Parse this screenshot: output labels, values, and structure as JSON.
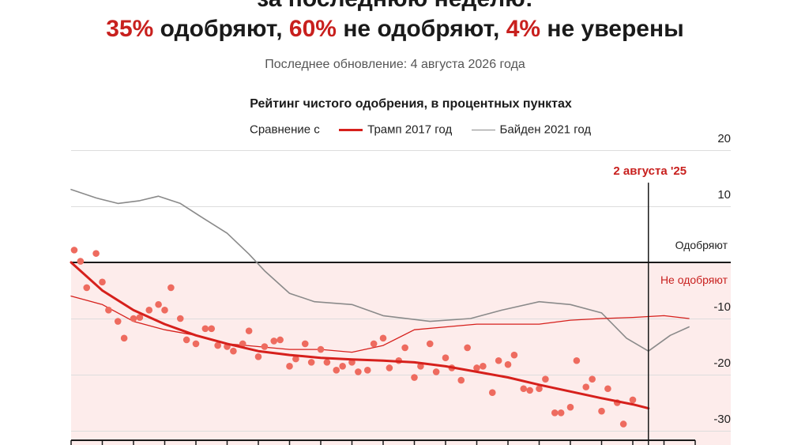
{
  "header": {
    "line1": "за последнюю неделю:",
    "approve_pct": "35%",
    "approve_text": "одобряют,",
    "disapprove_pct": "60%",
    "disapprove_text": "не одобряют,",
    "unsure_pct": "4%",
    "unsure_text": "не уверены",
    "updated": "Последнее обновление: 4 августа 2026 года"
  },
  "legend": {
    "compare_label": "Сравнение с",
    "trump_label": "Трамп 2017 год",
    "biden_label": "Байден 2021 год"
  },
  "colors": {
    "trump": "#d6201c",
    "dots": "#ee6b5f",
    "biden": "#8a8a8a",
    "disapprove_zone": "#fdeceb",
    "accent": "#c8201e"
  },
  "chart_data": {
    "type": "scatter",
    "title": "Рейтинг чистого одобрения, в процентных пунктах",
    "xlabel": "",
    "ylabel": "",
    "ylim": [
      -31,
      22
    ],
    "xlim": [
      0,
      200
    ],
    "y_ticks": [
      20,
      10,
      -10,
      -20,
      -30
    ],
    "grid": true,
    "annotations": {
      "date_marker_label": "2 августа '25",
      "date_marker_x": 185,
      "approve_label": "Одобряют",
      "disapprove_label": "Не одобряют"
    },
    "dots": [
      [
        1,
        2.2
      ],
      [
        3,
        0.2
      ],
      [
        5,
        -4.5
      ],
      [
        8,
        1.6
      ],
      [
        10,
        -3.5
      ],
      [
        12,
        -8.5
      ],
      [
        15,
        -10.5
      ],
      [
        17,
        -13.5
      ],
      [
        20,
        -10
      ],
      [
        22,
        -9.8
      ],
      [
        25,
        -8.5
      ],
      [
        28,
        -7.5
      ],
      [
        30,
        -8.5
      ],
      [
        32,
        -4.5
      ],
      [
        35,
        -10
      ],
      [
        37,
        -13.8
      ],
      [
        40,
        -14.5
      ],
      [
        43,
        -11.8
      ],
      [
        45,
        -11.8
      ],
      [
        47,
        -14.8
      ],
      [
        50,
        -15
      ],
      [
        52,
        -15.8
      ],
      [
        55,
        -14.5
      ],
      [
        57,
        -12.2
      ],
      [
        60,
        -16.8
      ],
      [
        62,
        -15
      ],
      [
        65,
        -14
      ],
      [
        67,
        -13.8
      ],
      [
        70,
        -18.5
      ],
      [
        72,
        -17.2
      ],
      [
        75,
        -14.5
      ],
      [
        77,
        -17.8
      ],
      [
        80,
        -15.5
      ],
      [
        82,
        -17.8
      ],
      [
        85,
        -19.2
      ],
      [
        87,
        -18.5
      ],
      [
        90,
        -17.8
      ],
      [
        92,
        -19.5
      ],
      [
        95,
        -19.2
      ],
      [
        97,
        -14.5
      ],
      [
        100,
        -13.5
      ],
      [
        102,
        -18.8
      ],
      [
        105,
        -17.5
      ],
      [
        107,
        -15.2
      ],
      [
        110,
        -20.5
      ],
      [
        112,
        -18.5
      ],
      [
        115,
        -14.5
      ],
      [
        117,
        -19.5
      ],
      [
        120,
        -17
      ],
      [
        122,
        -18.8
      ],
      [
        125,
        -21
      ],
      [
        127,
        -15.2
      ],
      [
        130,
        -18.8
      ],
      [
        132,
        -18.5
      ],
      [
        135,
        -23.2
      ],
      [
        137,
        -17.5
      ],
      [
        140,
        -18.2
      ],
      [
        142,
        -16.5
      ],
      [
        145,
        -22.5
      ],
      [
        147,
        -22.8
      ],
      [
        150,
        -22.5
      ],
      [
        152,
        -20.8
      ],
      [
        155,
        -26.8
      ],
      [
        157,
        -26.8
      ],
      [
        160,
        -25.8
      ],
      [
        162,
        -17.5
      ],
      [
        165,
        -22.2
      ],
      [
        167,
        -20.8
      ],
      [
        170,
        -26.5
      ],
      [
        172,
        -22.5
      ],
      [
        175,
        -25
      ],
      [
        177,
        -28.8
      ],
      [
        180,
        -24.5
      ]
    ],
    "series": [
      {
        "name": "",
        "role": "trend",
        "values": [
          [
            0,
            0
          ],
          [
            10,
            -5
          ],
          [
            20,
            -8.5
          ],
          [
            30,
            -11
          ],
          [
            40,
            -13
          ],
          [
            50,
            -14.5
          ],
          [
            60,
            -15.8
          ],
          [
            70,
            -16.5
          ],
          [
            80,
            -17
          ],
          [
            90,
            -17.3
          ],
          [
            100,
            -17.5
          ],
          [
            110,
            -17.8
          ],
          [
            120,
            -18.5
          ],
          [
            130,
            -19.5
          ],
          [
            140,
            -20.5
          ],
          [
            150,
            -21.8
          ],
          [
            160,
            -23
          ],
          [
            170,
            -24.2
          ],
          [
            180,
            -25.3
          ],
          [
            185,
            -26
          ]
        ]
      },
      {
        "name": "Трамп 2017 год",
        "role": "comparison",
        "values": [
          [
            0,
            -6
          ],
          [
            10,
            -7.5
          ],
          [
            20,
            -10.5
          ],
          [
            30,
            -12
          ],
          [
            40,
            -13
          ],
          [
            50,
            -14.5
          ],
          [
            60,
            -15
          ],
          [
            70,
            -15.5
          ],
          [
            80,
            -15.5
          ],
          [
            90,
            -16
          ],
          [
            100,
            -14.8
          ],
          [
            110,
            -12
          ],
          [
            120,
            -11.5
          ],
          [
            130,
            -11
          ],
          [
            140,
            -11
          ],
          [
            150,
            -11
          ],
          [
            160,
            -10.3
          ],
          [
            170,
            -10
          ],
          [
            180,
            -9.8
          ],
          [
            190,
            -9.5
          ],
          [
            198,
            -10
          ]
        ]
      },
      {
        "name": "Байден 2021 год",
        "role": "comparison",
        "values": [
          [
            0,
            13
          ],
          [
            8,
            11.5
          ],
          [
            15,
            10.5
          ],
          [
            22,
            11
          ],
          [
            28,
            11.8
          ],
          [
            35,
            10.5
          ],
          [
            42,
            8
          ],
          [
            50,
            5.2
          ],
          [
            57,
            1.5
          ],
          [
            62,
            -1.5
          ],
          [
            70,
            -5.5
          ],
          [
            78,
            -7
          ],
          [
            90,
            -7.5
          ],
          [
            100,
            -9.5
          ],
          [
            115,
            -10.5
          ],
          [
            128,
            -10
          ],
          [
            138,
            -8.5
          ],
          [
            150,
            -7
          ],
          [
            160,
            -7.5
          ],
          [
            170,
            -9
          ],
          [
            178,
            -13.5
          ],
          [
            185,
            -15.8
          ],
          [
            192,
            -13
          ],
          [
            198,
            -11.5
          ]
        ]
      }
    ]
  }
}
